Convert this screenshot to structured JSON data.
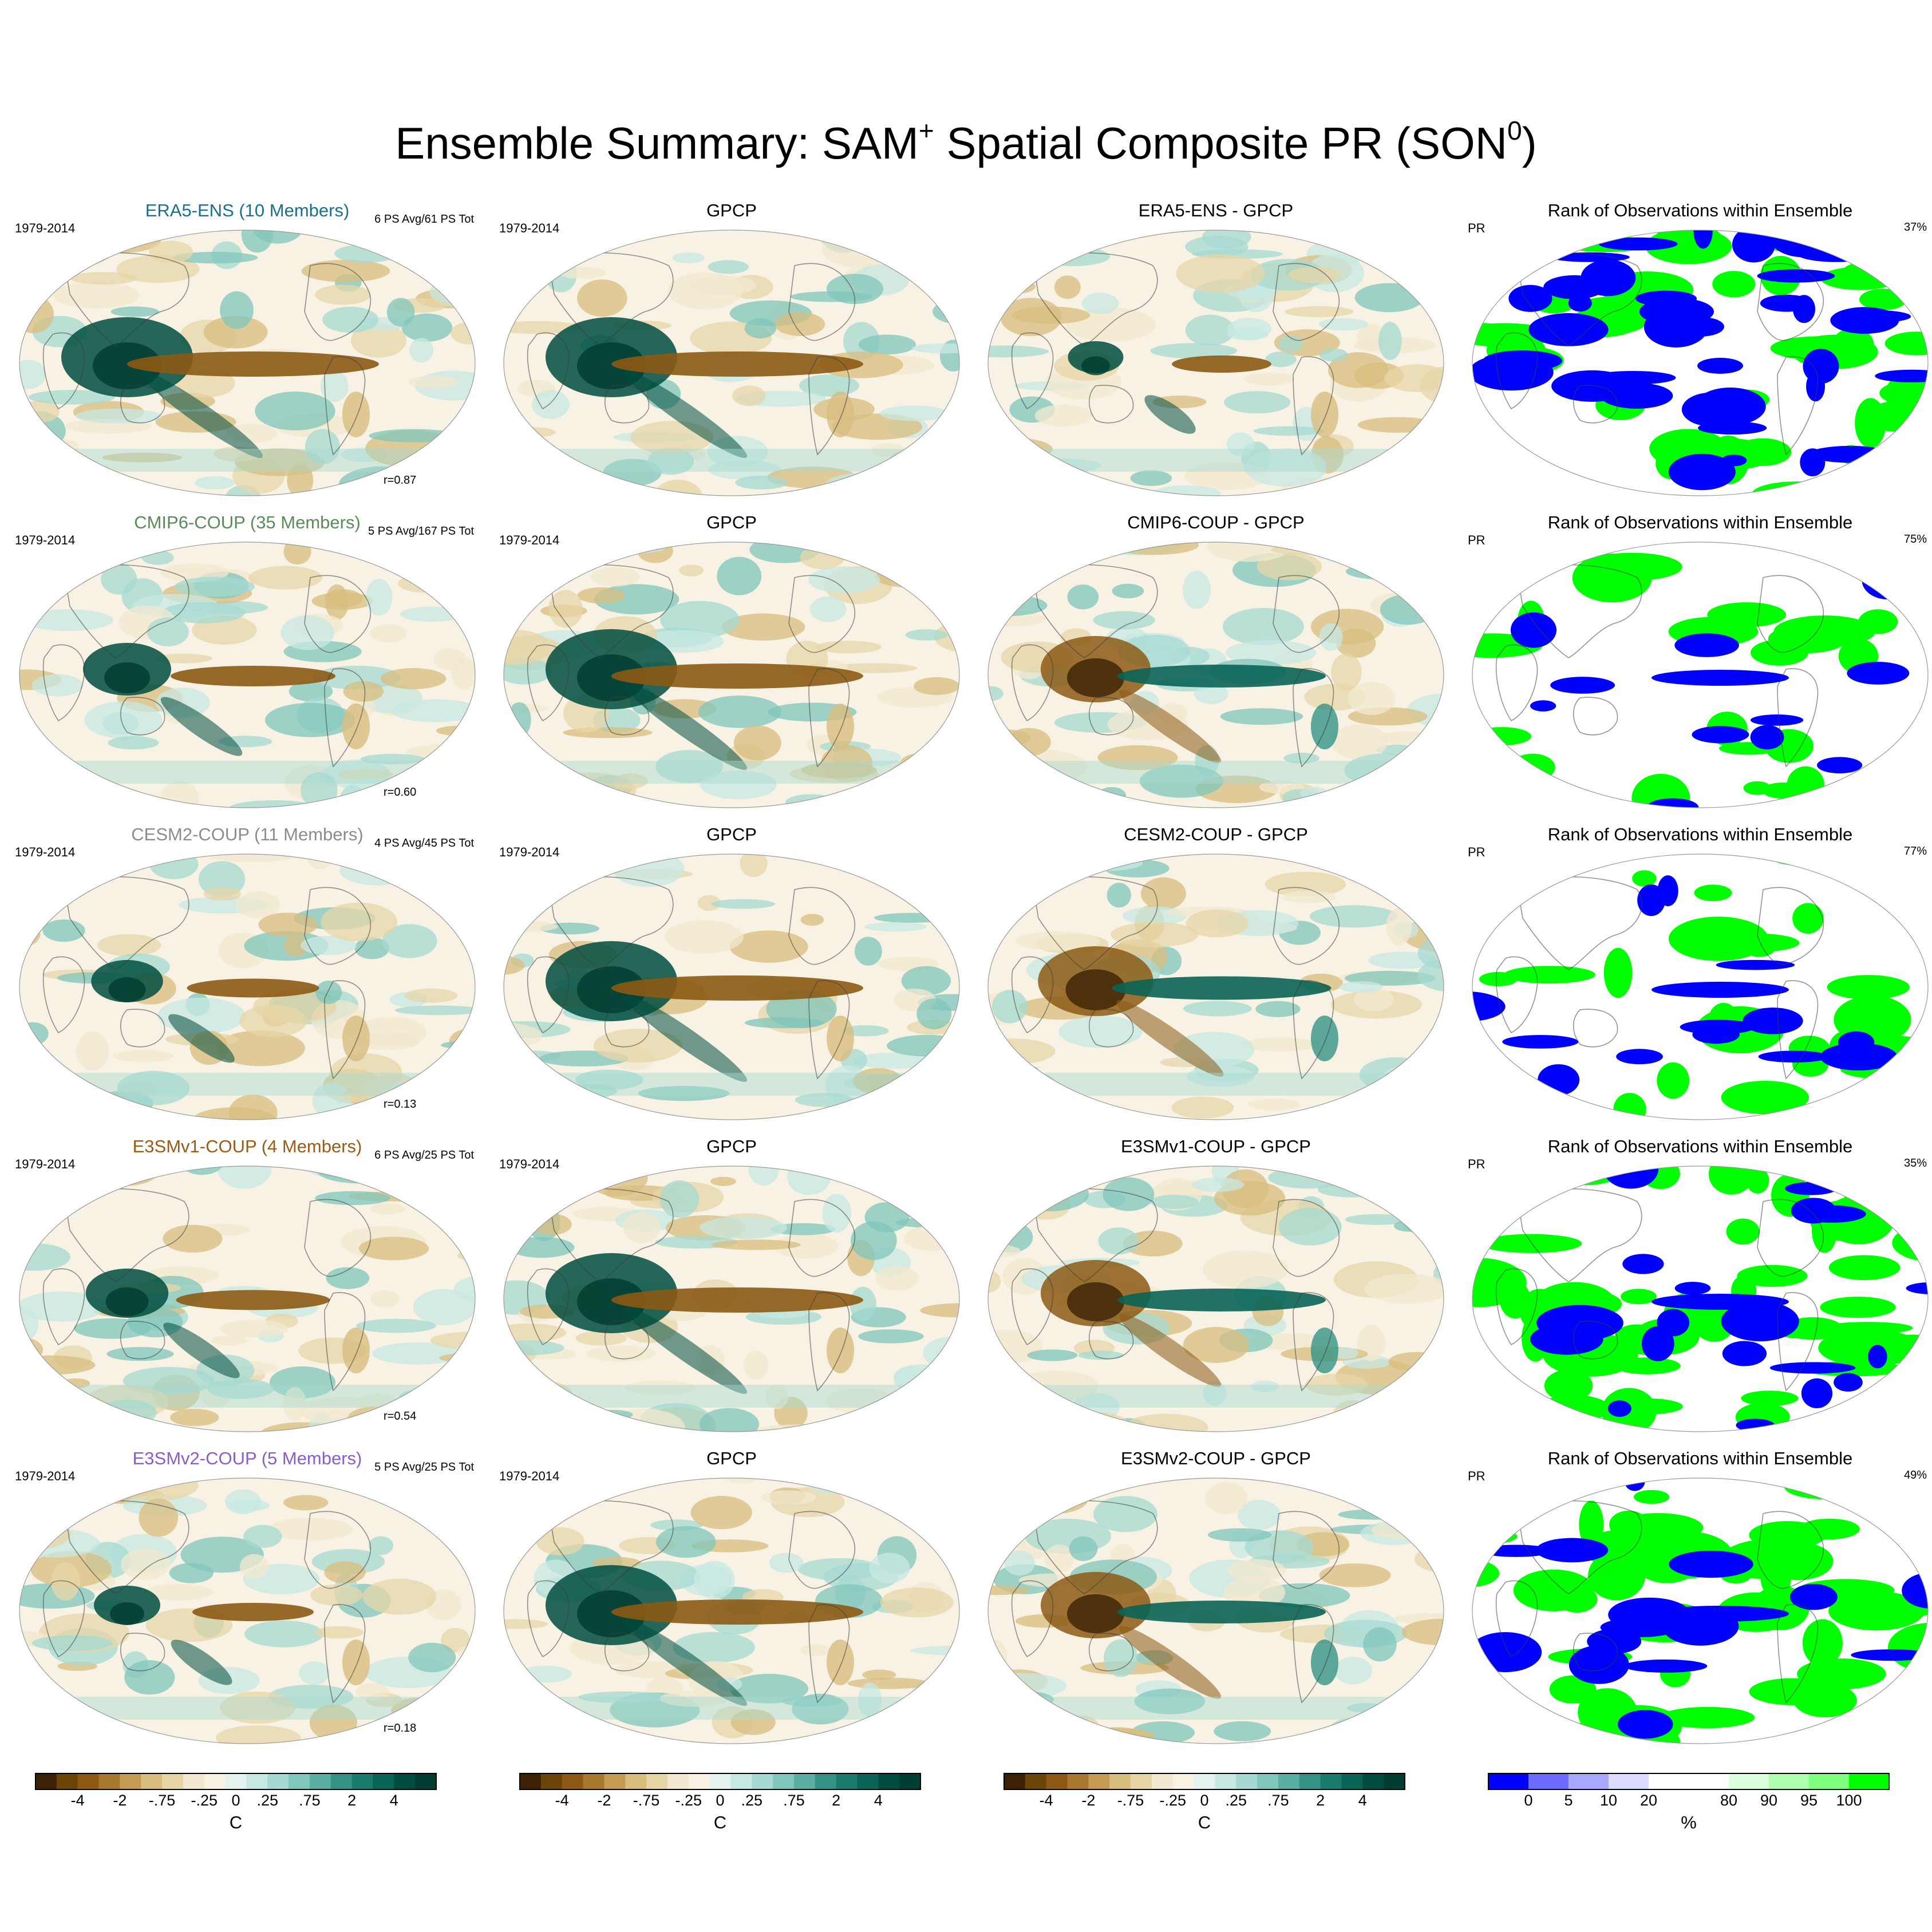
{
  "figure": {
    "title_main": "Ensemble Summary: SAM",
    "title_sup1": "+",
    "title_mid": " Spatial Composite PR (SON",
    "title_sup2": "0",
    "title_end": ")"
  },
  "colors": {
    "era5": "#1a6f8c",
    "cmip6": "#5a8c5a",
    "cesm2": "#8c8c8c",
    "e3smv1": "#9c5a14",
    "e3smv2": "#8a5ccc",
    "brown_dark": "#543005",
    "teal_dark": "#003c30",
    "rank_blue": "#0000ff",
    "rank_green": "#00ff00"
  },
  "rows": [
    {
      "ensemble": {
        "title": "ERA5-ENS (10 Members)",
        "period": "1979-2014",
        "corner": "6 PS Avg/61 PS Tot",
        "r": "r=0.87"
      },
      "obs": {
        "title": "GPCP",
        "period": "1979-2014"
      },
      "diff": {
        "title": "ERA5-ENS - GPCP"
      },
      "rank": {
        "title": "Rank of Observations within Ensemble",
        "var": "PR",
        "pct": "37%",
        "blue_pct": 37,
        "green_pct": 45
      }
    },
    {
      "ensemble": {
        "title": "CMIP6-COUP (35 Members)",
        "period": "1979-2014",
        "corner": "5 PS Avg/167 PS Tot",
        "r": "r=0.60"
      },
      "obs": {
        "title": "GPCP",
        "period": "1979-2014"
      },
      "diff": {
        "title": "CMIP6-COUP - GPCP"
      },
      "rank": {
        "title": "Rank of Observations within Ensemble",
        "var": "PR",
        "pct": "75%",
        "blue_pct": 8,
        "green_pct": 17
      }
    },
    {
      "ensemble": {
        "title": "CESM2-COUP (11 Members)",
        "period": "1979-2014",
        "corner": "4 PS Avg/45 PS Tot",
        "r": "r=0.13"
      },
      "obs": {
        "title": "GPCP",
        "period": "1979-2014"
      },
      "diff": {
        "title": "CESM2-COUP - GPCP"
      },
      "rank": {
        "title": "Rank of Observations within Ensemble",
        "var": "PR",
        "pct": "77%",
        "blue_pct": 8,
        "green_pct": 15
      }
    },
    {
      "ensemble": {
        "title": "E3SMv1-COUP (4 Members)",
        "period": "1979-2014",
        "corner": "6 PS Avg/25 PS Tot",
        "r": "r=0.54"
      },
      "obs": {
        "title": "GPCP",
        "period": "1979-2014"
      },
      "diff": {
        "title": "E3SMv1-COUP - GPCP"
      },
      "rank": {
        "title": "Rank of Observations within Ensemble",
        "var": "PR",
        "pct": "35%",
        "blue_pct": 15,
        "green_pct": 50
      }
    },
    {
      "ensemble": {
        "title": "E3SMv2-COUP (5 Members)",
        "period": "1979-2014",
        "corner": "5 PS Avg/25 PS Tot",
        "r": "r=0.18"
      },
      "obs": {
        "title": "GPCP",
        "period": "1979-2014"
      },
      "diff": {
        "title": "E3SMv2-COUP - GPCP"
      },
      "rank": {
        "title": "Rank of Observations within Ensemble",
        "var": "PR",
        "pct": "49%",
        "blue_pct": 12,
        "green_pct": 39
      }
    }
  ],
  "colorbars": {
    "anomaly": {
      "ticks": [
        "-4",
        "-2",
        "-.75",
        "-.25",
        "0",
        ".25",
        ".75",
        "2",
        "4"
      ],
      "unit": "C",
      "colors": [
        "#3b2204",
        "#6b4409",
        "#8c5a14",
        "#a97830",
        "#c49a55",
        "#d8bd7f",
        "#e7d5a8",
        "#f2e8cf",
        "#f7f2e4",
        "#e4f2f0",
        "#c8e8e3",
        "#a6d9d1",
        "#80c6bb",
        "#5aaea2",
        "#359386",
        "#1a7a6c",
        "#096455",
        "#004d40",
        "#003c30"
      ]
    },
    "rank": {
      "ticks": [
        "0",
        "5",
        "10",
        "20",
        "80",
        "90",
        "95",
        "100"
      ],
      "unit": "%",
      "colors": [
        "#0000ff",
        "#6b6bff",
        "#a8a8ff",
        "#dcdcff",
        "#ffffff",
        "#ffffff",
        "#dcffdc",
        "#b0ffb0",
        "#80ff80",
        "#00ff00"
      ]
    }
  }
}
